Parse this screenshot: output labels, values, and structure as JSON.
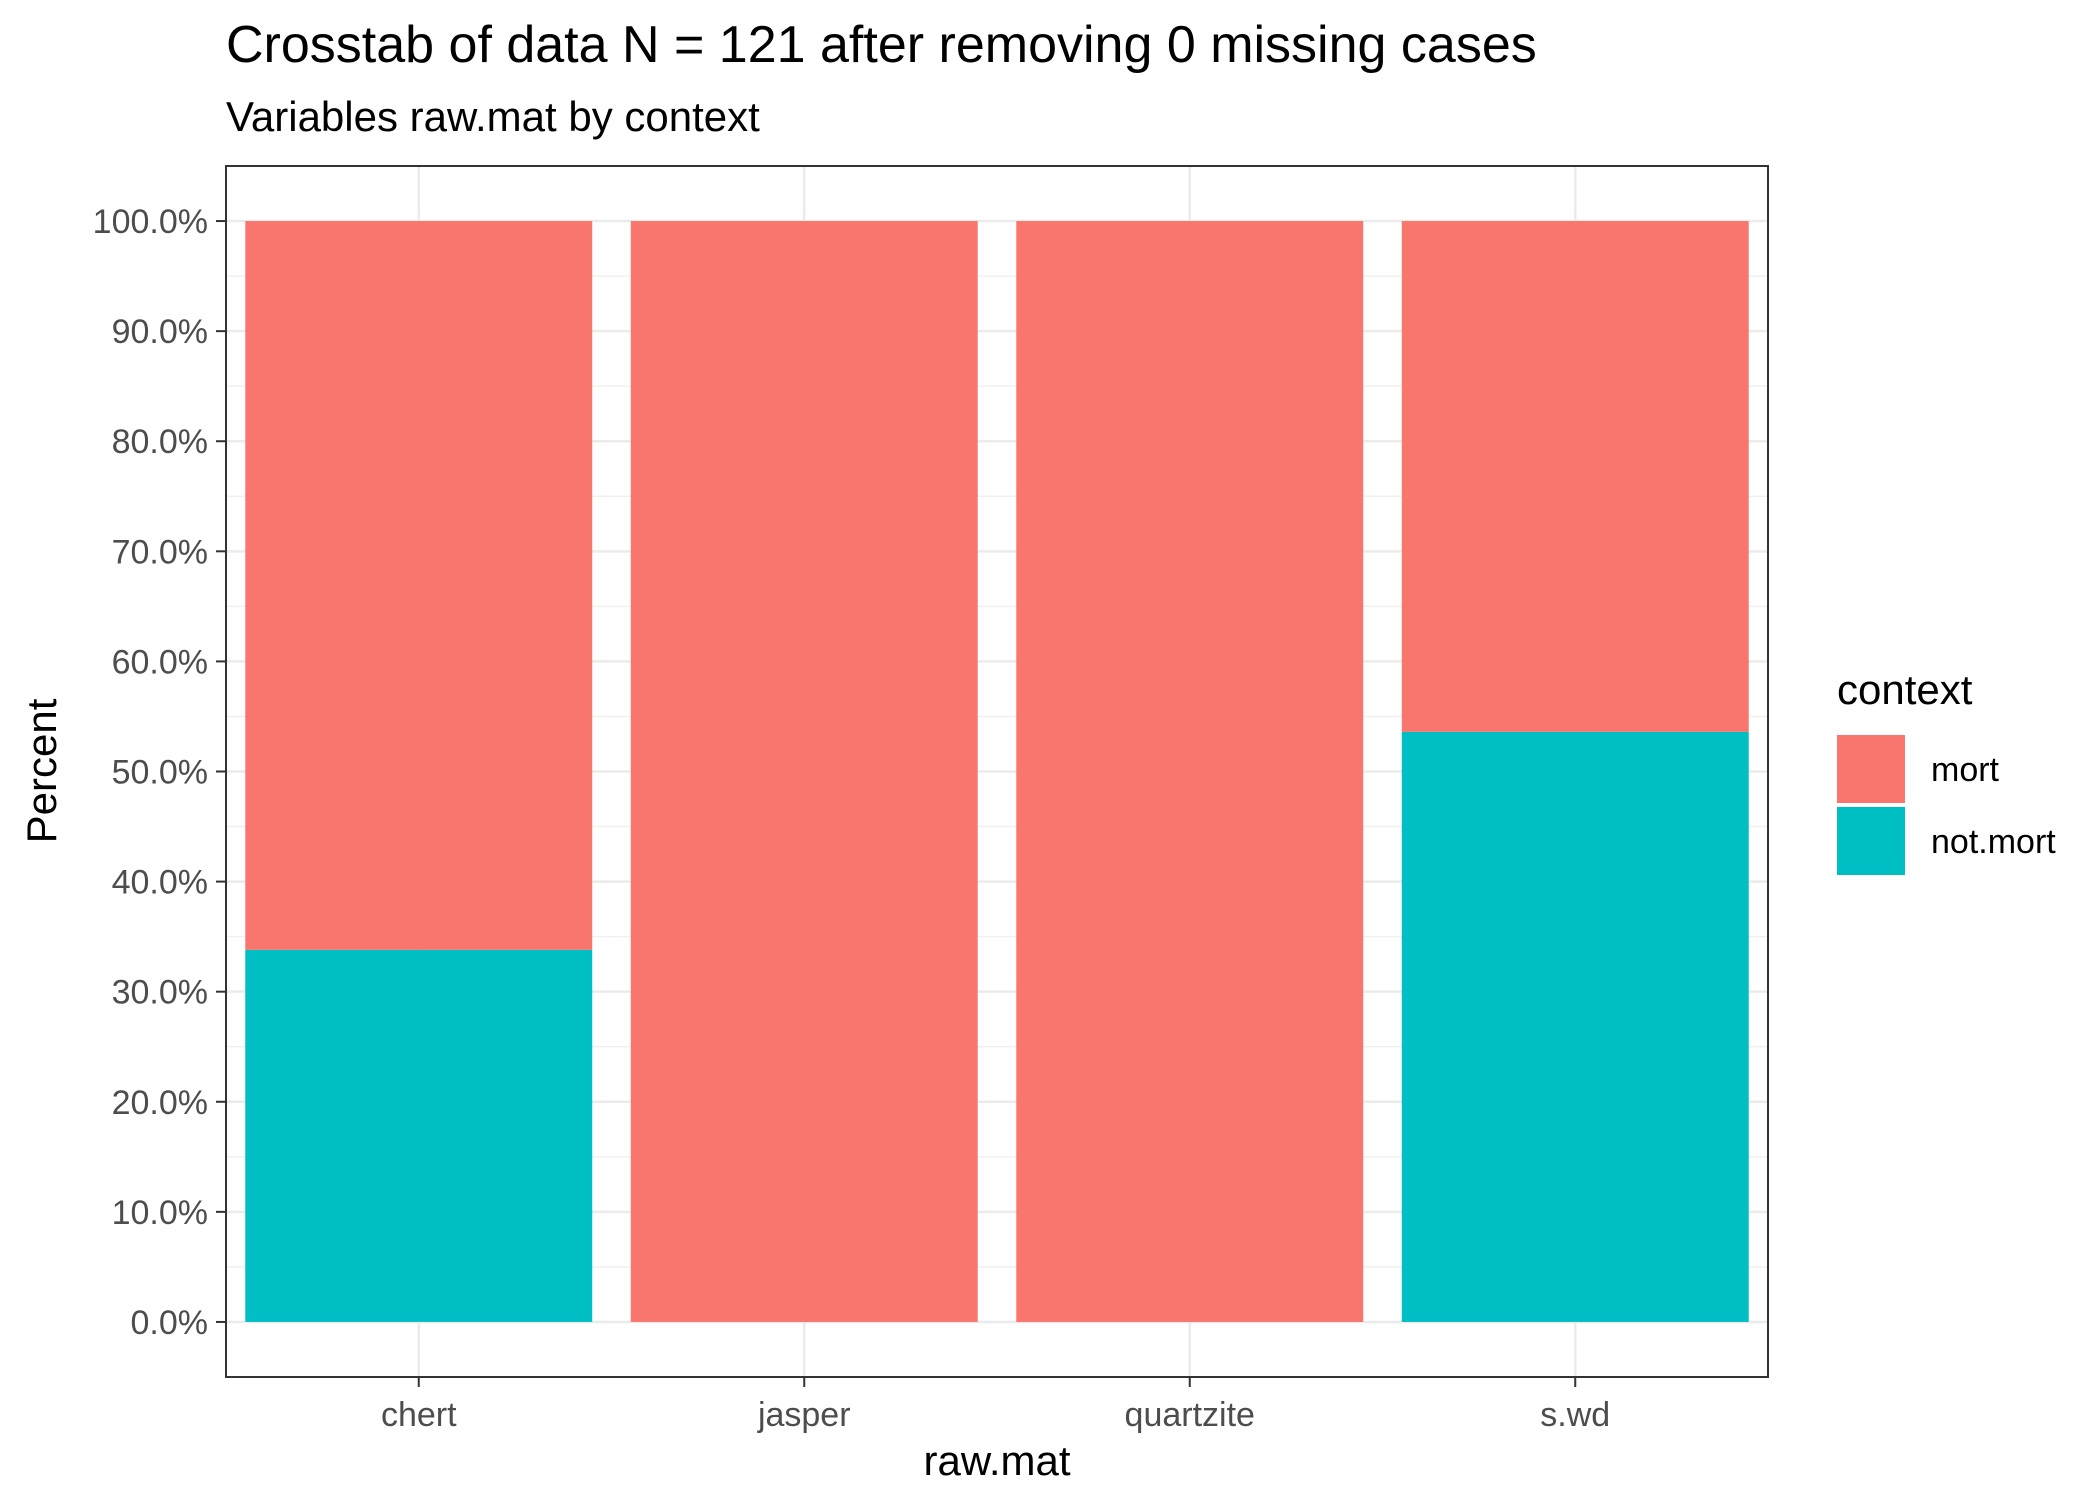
{
  "chart_data": {
    "type": "bar",
    "stacked": true,
    "title": "Crosstab of data N = 121 after removing 0 missing cases",
    "subtitle": "Variables raw.mat by context",
    "xlabel": "raw.mat",
    "ylabel": "Percent",
    "categories": [
      "chert",
      "jasper",
      "quartzite",
      "s.wd"
    ],
    "ylim": [
      -5,
      105
    ],
    "yticks": [
      0,
      10,
      20,
      30,
      40,
      50,
      60,
      70,
      80,
      90,
      100
    ],
    "ytick_labels": [
      "0.0%",
      "10.0%",
      "20.0%",
      "30.0%",
      "40.0%",
      "50.0%",
      "60.0%",
      "70.0%",
      "80.0%",
      "90.0%",
      "100.0%"
    ],
    "series": [
      {
        "name": "not.mort",
        "values": [
          33.8,
          0,
          0,
          53.6
        ],
        "color": "#00BFC4"
      },
      {
        "name": "mort",
        "values": [
          66.2,
          100,
          100,
          46.4
        ],
        "color": "#F8766D"
      }
    ],
    "legend": {
      "title": "context",
      "position": "right",
      "items": [
        {
          "label": "mort",
          "color": "#F8766D"
        },
        {
          "label": "not.mort",
          "color": "#00BFC4"
        }
      ]
    },
    "grid": true,
    "theme": "bw"
  }
}
